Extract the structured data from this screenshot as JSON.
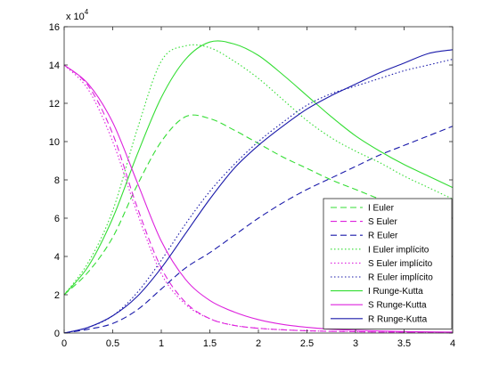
{
  "chart_data": {
    "type": "line",
    "title": "",
    "xlabel": "",
    "ylabel": "",
    "scale_label": "x 10^4",
    "scale_exponent": 4,
    "xlim": [
      0,
      4
    ],
    "ylim": [
      0,
      16
    ],
    "xticks": [
      0,
      0.5,
      1,
      1.5,
      2,
      2.5,
      3,
      3.5,
      4
    ],
    "xtick_labels": [
      "0",
      "0.5",
      "1",
      "1.5",
      "2",
      "2.5",
      "3",
      "3.5",
      "4"
    ],
    "yticks": [
      0,
      2,
      4,
      6,
      8,
      10,
      12,
      14,
      16
    ],
    "ytick_labels": [
      "0",
      "2",
      "4",
      "6",
      "8",
      "10",
      "12",
      "14",
      "16"
    ],
    "grid": false,
    "legend_position": "bottom-right",
    "x": [
      0,
      0.25,
      0.5,
      0.75,
      1,
      1.25,
      1.5,
      1.75,
      2,
      2.25,
      2.5,
      2.75,
      3,
      3.25,
      3.5,
      3.75,
      4
    ],
    "series": [
      {
        "name": "I Euler",
        "color": "#33dd33",
        "dash": "dashed",
        "values": [
          2.0,
          3.2,
          5.0,
          7.7,
          10.0,
          11.3,
          11.2,
          10.6,
          9.9,
          9.2,
          8.6,
          8.0,
          7.5,
          7.0,
          6.6,
          6.2,
          5.8
        ]
      },
      {
        "name": "S Euler",
        "color": "#dd22dd",
        "dash": "dashed",
        "values": [
          14.0,
          12.9,
          10.4,
          6.6,
          3.4,
          1.6,
          0.75,
          0.4,
          0.25,
          0.17,
          0.12,
          0.09,
          0.07,
          0.05,
          0.04,
          0.03,
          0.02
        ]
      },
      {
        "name": "R Euler",
        "color": "#1a1aaa",
        "dash": "dashed",
        "values": [
          0.0,
          0.2,
          0.5,
          1.2,
          2.3,
          3.4,
          4.2,
          5.1,
          6.0,
          6.8,
          7.5,
          8.1,
          8.7,
          9.3,
          9.8,
          10.3,
          10.8
        ]
      },
      {
        "name": "I Euler implícito",
        "color": "#33dd33",
        "dash": "dotted",
        "values": [
          2.0,
          3.7,
          6.4,
          10.6,
          14.2,
          15.0,
          14.9,
          14.2,
          13.3,
          12.2,
          11.1,
          10.2,
          9.5,
          8.9,
          8.2,
          7.6,
          7.0
        ]
      },
      {
        "name": "S Euler implícito",
        "color": "#dd22dd",
        "dash": "dotted",
        "values": [
          14.0,
          12.7,
          10.0,
          6.3,
          3.1,
          1.5,
          0.75,
          0.4,
          0.25,
          0.17,
          0.12,
          0.09,
          0.07,
          0.05,
          0.04,
          0.03,
          0.02
        ]
      },
      {
        "name": "R Euler implícito",
        "color": "#1a1aaa",
        "dash": "dotted",
        "values": [
          0.0,
          0.3,
          0.9,
          2.1,
          3.8,
          5.7,
          7.4,
          8.8,
          10.0,
          11.0,
          11.9,
          12.5,
          12.9,
          13.3,
          13.7,
          14.0,
          14.3
        ]
      },
      {
        "name": "I Runge-Kutta",
        "color": "#33dd33",
        "dash": "solid",
        "values": [
          2.0,
          3.5,
          6.0,
          9.3,
          12.3,
          14.3,
          15.2,
          15.1,
          14.5,
          13.5,
          12.4,
          11.3,
          10.3,
          9.5,
          8.8,
          8.2,
          7.6
        ]
      },
      {
        "name": "S Runge-Kutta",
        "color": "#dd22dd",
        "dash": "solid",
        "values": [
          14.0,
          13.0,
          11.0,
          7.9,
          4.8,
          2.8,
          1.7,
          1.1,
          0.7,
          0.45,
          0.3,
          0.2,
          0.15,
          0.11,
          0.08,
          0.06,
          0.05
        ]
      },
      {
        "name": "R Runge-Kutta",
        "color": "#1a1aaa",
        "dash": "solid",
        "values": [
          0.0,
          0.3,
          0.9,
          1.9,
          3.4,
          5.2,
          7.0,
          8.6,
          9.8,
          10.8,
          11.7,
          12.4,
          13.0,
          13.6,
          14.1,
          14.6,
          14.8
        ]
      }
    ]
  }
}
